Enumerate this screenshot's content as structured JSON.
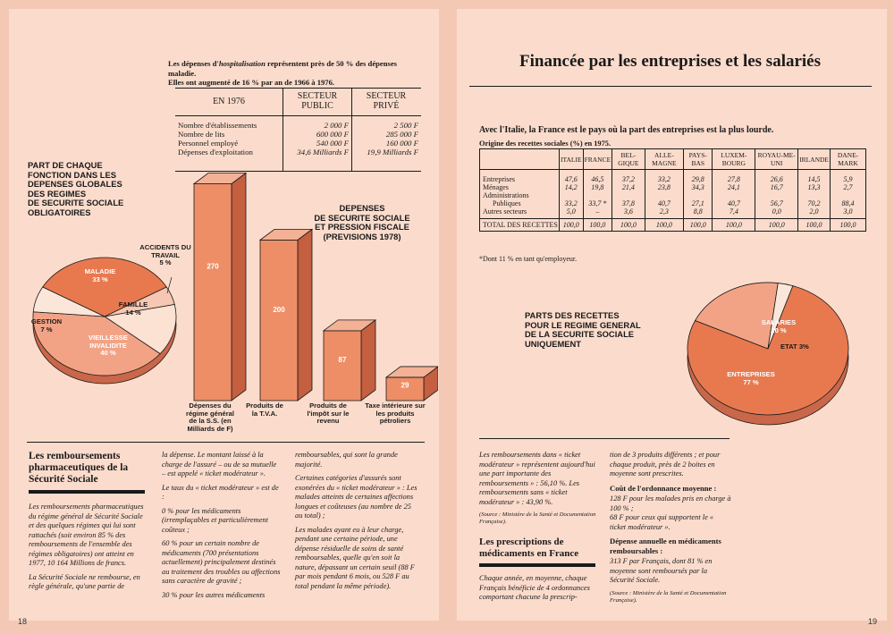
{
  "left_page": {
    "page_number": "18",
    "hosp_intro": {
      "line1_pre": "Les dépenses d'",
      "line1_em": "hospitalisation",
      "line1_post": " représentent près de 50 % des dépenses",
      "line2": "maladie.",
      "line3": "Elles ont augmenté de 16 % par an de 1966 à 1976."
    },
    "hosp_table": {
      "year_header": "EN 1976",
      "col1": "SECTEUR PUBLIC",
      "col2": "SECTEUR PRIVÉ",
      "rows": [
        {
          "label": "Nombre d'établissements",
          "public": "2 000 F",
          "prive": "2 500 F"
        },
        {
          "label": "Nombre de lits",
          "public": "600 000 F",
          "prive": "285 000 F"
        },
        {
          "label": "Personnel employé",
          "public": "540 000 F",
          "prive": "160 000 F"
        },
        {
          "label": "Dépenses d'exploitation",
          "public": "34,6 Milliards F",
          "prive": "19,9 Milliards F"
        }
      ]
    },
    "pie_title": [
      "PART DE CHAQUE",
      "FONCTION DANS LES",
      "DEPENSES GLOBALES",
      "DES REGIMES",
      "DE SECURITE SOCIALE",
      "OBLIGATOIRES"
    ],
    "bar_title": [
      "DEPENSES",
      "DE SECURITE SOCIALE",
      "ET PRESSION FISCALE",
      "(PREVISIONS 1978)"
    ],
    "article": {
      "title": "Les remboursements pharmaceutiques de la Sécurité Sociale",
      "col1": [
        "Les remboursements pharmaceutiques du régime général de Sécurité Sociale et des quelques régimes qui lui sont rattachés (soit environ 85 % des remboursements de l'ensemble des régimes obligatoires) ont atteint en 1977, 10 164 Millions de francs.",
        "La Sécurité Sociale ne rembourse, en règle générale, qu'une partie de"
      ],
      "col2": [
        "la dépense. Le montant laissé à la charge de l'assuré – ou de sa mutuelle – est appelé « ticket modérateur ».",
        "Le taux du « ticket modérateur » est de :",
        "0 % pour les médicaments (irremplaçables et particulièrement coûteux ;",
        "60 % pour un certain nombre de médicaments (700 présentations actuellement) principalement destinés au traitement des troubles ou affections sans caractère de gravité ;",
        "30 % pour les autres médicaments"
      ],
      "col3": [
        "remboursables, qui sont la grande majorité.",
        "Certaines catégories d'assurés sont exonérées du « ticket modérateur » : Les malades atteints de certaines affections longues et coûteuses (au nombre de 25 au total) ;",
        "Les malades ayant eu à leur charge, pendant une certaine période, une dépense résiduelle de soins de santé remboursables, quelle qu'en soit la nature, dépassant un certain seuil (88 F par mois pendant 6 mois, ou 528 F au total pendant la même période)."
      ]
    }
  },
  "right_page": {
    "page_number": "19",
    "title": "Financée par les entreprises et les salariés",
    "subtitle": "Avec l'Italie, la France est le pays où la part des entreprises est la plus lourde.",
    "table_caption": "Origine des recettes sociales (%) en 1975.",
    "table": {
      "countries": [
        "ITALIE",
        "FRANCE",
        "BEL-GIQUE",
        "ALLE-MAGNE",
        "PAYS-BAS",
        "LUXEM-BOURG",
        "ROYAU-ME-UNI",
        "IRLANDE",
        "DANE-MARK"
      ],
      "rows": [
        {
          "label": "Entreprises",
          "values": [
            "47,6",
            "46,5",
            "37,2",
            "33,2",
            "29,8",
            "27,8",
            "26,6",
            "14,5",
            "5,9"
          ]
        },
        {
          "label": "Ménages",
          "values": [
            "14,2",
            "19,8",
            "21,4",
            "23,8",
            "34,3",
            "24,1",
            "16,7",
            "13,3",
            "2,7"
          ]
        },
        {
          "label": "Administrations",
          "values": [
            "",
            "",
            "",
            "",
            "",
            "",
            "",
            "",
            ""
          ]
        },
        {
          "label": "Publiques",
          "values": [
            "33,2",
            "33,7 *",
            "37,8",
            "40,7",
            "27,1",
            "40,7",
            "56,7",
            "70,2",
            "88,4"
          ]
        },
        {
          "label": "Autres secteurs",
          "values": [
            "5,0",
            "–",
            "3,6",
            "2,3",
            "8,8",
            "7,4",
            "0,0",
            "2,0",
            "3,0"
          ]
        }
      ],
      "total_label": "TOTAL DES RECETTES",
      "total_values": [
        "100,0",
        "100,0",
        "100,0",
        "100,0",
        "100,0",
        "100,0",
        "100,0",
        "100,0",
        "100,0"
      ],
      "footnote": "*Dont 11 % en tant qu'employeur."
    },
    "pie_title": [
      "PARTS DES RECETTES",
      "POUR LE REGIME GENERAL",
      "DE LA SECURITE SOCIALE",
      "UNIQUEMENT"
    ],
    "col1": [
      "Les remboursements dans « ticket modérateur » représentent aujourd'hui une part importante des remboursements » : 56,10 %. Les remboursements sans « ticket modérateur » : 43,90 %.",
      "(Source : Ministère de la Santé et Documentation Française)."
    ],
    "presc_title": "Les prescriptions de médicaments en France",
    "col1b": "Chaque année, en moyenne, chaque Français bénéficie de 4 ordonnances comportant chacune la prescrip-",
    "col2": {
      "p1": "tion de 3 produits différents ; et pour chaque produit, près de 2 boites en moyenne sont prescrites.",
      "h1": "Coût de l'ordonnance moyenne :",
      "p2": "128 F pour les malades pris en charge à 100 % ;",
      "p3": "68 F pour ceux qui supportent le « ticket modérateur ».",
      "h2": "Dépense annuelle en médicaments remboursables :",
      "p4": "313 F par Français, dont 81 % en moyenne sont remboursés par la Sécurité Sociale.",
      "source": "(Source : Ministère de la Santé et Documentation Française)."
    }
  },
  "chart_data": [
    {
      "type": "pie",
      "title": "PART DE CHAQUE FONCTION DANS LES DEPENSES GLOBALES DES REGIMES DE SECURITE SOCIALE OBLIGATOIRES",
      "slices": [
        {
          "label": "MALADIE",
          "value": 33,
          "text": "33 %",
          "color": "#e8794f"
        },
        {
          "label": "ACCIDENTS DU TRAVAIL",
          "value": 5,
          "text": "5 %",
          "color": "#f6c7b2"
        },
        {
          "label": "FAMILLE",
          "value": 14,
          "text": "14 %",
          "color": "#fbe2d3"
        },
        {
          "label": "VIEILLESSE INVALIDITE",
          "value": 40,
          "text": "40 %",
          "color": "#f2a386"
        },
        {
          "label": "GESTION",
          "value": 7,
          "text": "7 %",
          "color": "#fbe6da"
        }
      ]
    },
    {
      "type": "bar",
      "title": "DEPENSES DE SECURITE SOCIALE ET PRESSION FISCALE (PREVISIONS 1978)",
      "categories": [
        "Dépenses du régime général de la S.S. (en Milliards de F)",
        "Produits de la T.V.A.",
        "Produits de l'impôt sur le revenu",
        "Taxe intérieure sur les produits pétroliers"
      ],
      "values": [
        270,
        200,
        87,
        29
      ],
      "labels": [
        "270",
        "200",
        "87",
        "29"
      ],
      "ylim": [
        0,
        270
      ]
    },
    {
      "type": "pie",
      "title": "PARTS DES RECETTES POUR LE REGIME GENERAL DE LA SECURITE SOCIALE UNIQUEMENT",
      "slices": [
        {
          "label": "ENTREPRISES",
          "value": 77,
          "text": "77 %",
          "color": "#e8794f"
        },
        {
          "label": "SALARIES",
          "value": 20,
          "text": "20 %",
          "color": "#f2a386"
        },
        {
          "label": "ETAT",
          "value": 3,
          "text": "3%",
          "color": "#fbe6da"
        }
      ]
    }
  ]
}
